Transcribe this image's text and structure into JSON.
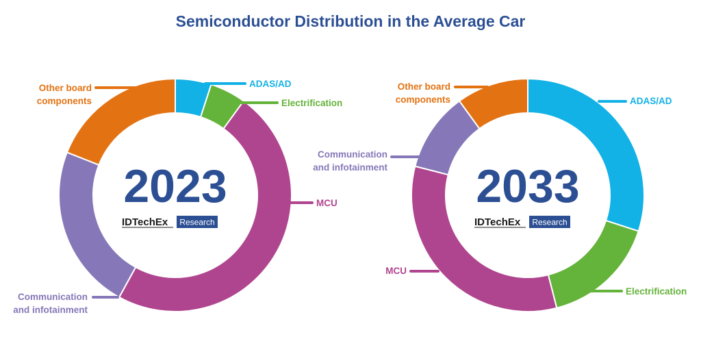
{
  "title": "Semiconductor Distribution in the Average Car",
  "brand": {
    "name": "IDTechEx",
    "tag": "Research",
    "color": "#2c4f94"
  },
  "colors": {
    "ADAS/AD": "#12b1e6",
    "Electrification": "#64b33a",
    "MCU": "#b0458f",
    "Communication and infotainment": "#8678b8",
    "Other board components": "#e37212"
  },
  "chart_data": [
    {
      "type": "pie",
      "year_label": "2023",
      "categories": [
        "ADAS/AD",
        "Electrification",
        "MCU",
        "Communication and infotainment",
        "Other board components"
      ],
      "values": [
        5,
        5,
        48,
        23,
        19
      ],
      "labels": {
        "ADAS/AD": [
          "ADAS/AD"
        ],
        "Electrification": [
          "Electrification"
        ],
        "MCU": [
          "MCU"
        ],
        "Communication and infotainment": [
          "Communication",
          "and infotainment"
        ],
        "Other board components": [
          "Other board",
          "components"
        ]
      }
    },
    {
      "type": "pie",
      "year_label": "2033",
      "categories": [
        "ADAS/AD",
        "Electrification",
        "MCU",
        "Communication and infotainment",
        "Other board components"
      ],
      "values": [
        30,
        16,
        33,
        11,
        10
      ],
      "labels": {
        "ADAS/AD": [
          "ADAS/AD"
        ],
        "Electrification": [
          "Electrification"
        ],
        "MCU": [
          "MCU"
        ],
        "Communication and infotainment": [
          "Communication",
          "and infotainment"
        ],
        "Other board components": [
          "Other board",
          "components"
        ]
      }
    }
  ]
}
